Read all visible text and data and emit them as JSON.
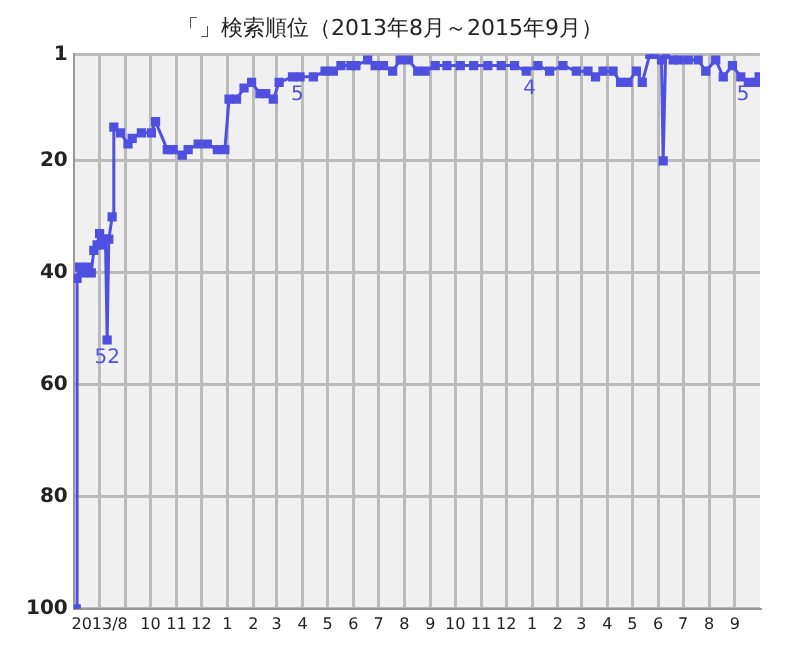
{
  "chart_data": {
    "type": "line",
    "title": "「」検索順位（2013年8月～2015年9月）",
    "x": [
      "2013-07-04",
      "2013-07-05",
      "2013-07-08",
      "2013-07-13",
      "2013-07-18",
      "2013-07-22",
      "2013-07-25",
      "2013-07-29",
      "2013-08-01",
      "2013-08-03",
      "2013-08-08",
      "2013-08-10",
      "2013-08-12",
      "2013-08-16",
      "2013-08-18",
      "2013-08-26",
      "2013-09-04",
      "2013-09-09",
      "2013-09-20",
      "2013-10-02",
      "2013-10-07",
      "2013-10-21",
      "2013-10-28",
      "2013-11-08",
      "2013-11-15",
      "2013-11-27",
      "2013-12-08",
      "2013-12-20",
      "2013-12-29",
      "2014-01-03",
      "2014-01-12",
      "2014-01-21",
      "2014-01-30",
      "2014-02-09",
      "2014-02-16",
      "2014-02-25",
      "2014-03-04",
      "2014-03-20",
      "2014-03-29",
      "2014-04-14",
      "2014-04-28",
      "2014-05-08",
      "2014-05-17",
      "2014-05-29",
      "2014-06-04",
      "2014-06-18",
      "2014-06-27",
      "2014-07-07",
      "2014-07-18",
      "2014-07-27",
      "2014-08-06",
      "2014-08-17",
      "2014-08-26",
      "2014-09-07",
      "2014-09-21",
      "2014-10-07",
      "2014-10-23",
      "2014-11-09",
      "2014-11-25",
      "2014-12-11",
      "2014-12-25",
      "2015-01-08",
      "2015-01-22",
      "2015-02-07",
      "2015-02-23",
      "2015-03-09",
      "2015-03-18",
      "2015-03-27",
      "2015-04-08",
      "2015-04-17",
      "2015-04-26",
      "2015-05-06",
      "2015-05-13",
      "2015-05-22",
      "2015-05-29",
      "2015-06-05",
      "2015-06-07",
      "2015-06-10",
      "2015-06-19",
      "2015-06-26",
      "2015-07-07",
      "2015-07-19",
      "2015-07-28",
      "2015-08-09",
      "2015-08-18",
      "2015-08-29",
      "2015-09-08",
      "2015-09-17",
      "2015-09-26",
      "2015-09-30"
    ],
    "series": [
      {
        "color": "#4f4fe0",
        "values": [
          100,
          41,
          39,
          40,
          39,
          40,
          36,
          35,
          33,
          35,
          34,
          52,
          34,
          30,
          14,
          15,
          17,
          16,
          15,
          15,
          13,
          18,
          18,
          19,
          18,
          17,
          17,
          18,
          18,
          9,
          9,
          7,
          6,
          8,
          8,
          9,
          6,
          5,
          5,
          5,
          4,
          4,
          3,
          3,
          3,
          2,
          3,
          3,
          4,
          2,
          2,
          4,
          4,
          3,
          3,
          3,
          3,
          3,
          3,
          3,
          4,
          3,
          4,
          3,
          4,
          4,
          5,
          4,
          4,
          6,
          6,
          4,
          6,
          1,
          1,
          2,
          20,
          1,
          2,
          2,
          2,
          2,
          4,
          2,
          5,
          3,
          5,
          6,
          6,
          5
        ]
      }
    ],
    "xlim": [
      "2013-07-01",
      "2015-10-01"
    ],
    "xticks": [
      {
        "value": "2013-08-01",
        "label": "2013/8"
      },
      {
        "value": "2013-09-01",
        "label": null
      },
      {
        "value": "2013-10-01",
        "label": "10"
      },
      {
        "value": "2013-11-01",
        "label": "11"
      },
      {
        "value": "2013-12-01",
        "label": "12"
      },
      {
        "value": "2014-01-01",
        "label": "1"
      },
      {
        "value": "2014-02-01",
        "label": "2"
      },
      {
        "value": "2014-03-01",
        "label": "3"
      },
      {
        "value": "2014-04-01",
        "label": "4"
      },
      {
        "value": "2014-05-01",
        "label": "5"
      },
      {
        "value": "2014-06-01",
        "label": "6"
      },
      {
        "value": "2014-07-01",
        "label": "7"
      },
      {
        "value": "2014-08-01",
        "label": "8"
      },
      {
        "value": "2014-09-01",
        "label": "9"
      },
      {
        "value": "2014-10-01",
        "label": "10"
      },
      {
        "value": "2014-11-01",
        "label": "11"
      },
      {
        "value": "2014-12-01",
        "label": "12"
      },
      {
        "value": "2015-01-01",
        "label": "1"
      },
      {
        "value": "2015-02-01",
        "label": "2"
      },
      {
        "value": "2015-03-01",
        "label": "3"
      },
      {
        "value": "2015-04-01",
        "label": "4"
      },
      {
        "value": "2015-05-01",
        "label": "5"
      },
      {
        "value": "2015-06-01",
        "label": "6"
      },
      {
        "value": "2015-07-01",
        "label": "7"
      },
      {
        "value": "2015-08-01",
        "label": "8"
      },
      {
        "value": "2015-09-01",
        "label": "9"
      }
    ],
    "ylim": [
      100,
      1
    ],
    "yticks": [
      1,
      20,
      40,
      60,
      80,
      100
    ],
    "grid": true,
    "legend": false,
    "marker": "square",
    "line_style": "solid",
    "annotations": [
      {
        "text": "52",
        "x": "2013-08-10",
        "y": 52
      },
      {
        "text": "5",
        "x": "2014-03-26",
        "y": 5
      },
      {
        "text": "4",
        "x": "2014-12-29",
        "y": 4
      },
      {
        "text": "5",
        "x": "2015-09-28",
        "y": 5
      }
    ]
  }
}
